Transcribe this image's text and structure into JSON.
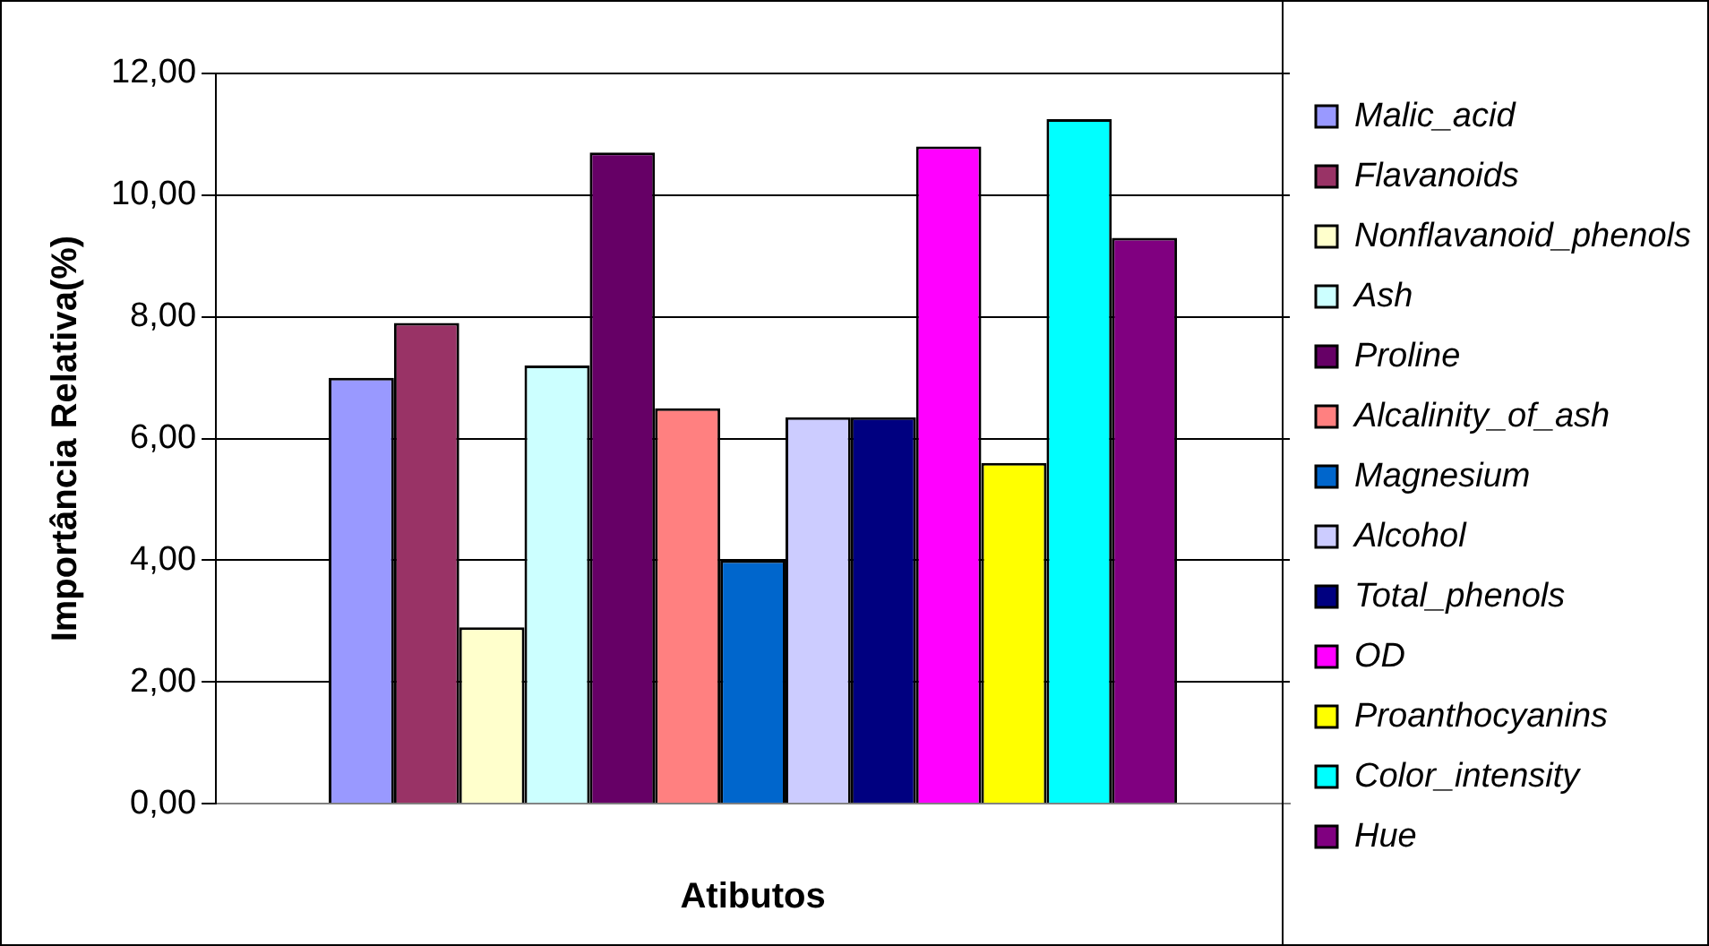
{
  "chart_data": {
    "type": "bar",
    "xlabel": "Atibutos",
    "ylabel": "Importância Relativa(%)",
    "categories": [
      null
    ],
    "series": [
      {
        "name": "Malic_acid",
        "color": "#9999ff",
        "values": [
          7.0
        ]
      },
      {
        "name": "Flavanoids",
        "color": "#993366",
        "values": [
          7.9
        ]
      },
      {
        "name": "Nonflavanoid_phenols",
        "color": "#ffffcc",
        "values": [
          2.9
        ]
      },
      {
        "name": "Ash",
        "color": "#ccffff",
        "values": [
          7.2
        ]
      },
      {
        "name": "Proline",
        "color": "#660066",
        "values": [
          10.7
        ]
      },
      {
        "name": "Alcalinity_of_ash",
        "color": "#ff8080",
        "values": [
          6.5
        ]
      },
      {
        "name": "Magnesium",
        "color": "#0066cc",
        "values": [
          4.0
        ]
      },
      {
        "name": "Alcohol",
        "color": "#ccccff",
        "values": [
          6.35
        ]
      },
      {
        "name": "Total_phenols",
        "color": "#000080",
        "values": [
          6.35
        ]
      },
      {
        "name": "OD",
        "color": "#ff00ff",
        "values": [
          10.8
        ]
      },
      {
        "name": "Proanthocyanins",
        "color": "#ffff00",
        "values": [
          5.6
        ]
      },
      {
        "name": "Color_intensity",
        "color": "#00ffff",
        "values": [
          11.25
        ]
      },
      {
        "name": "Hue",
        "color": "#800080",
        "values": [
          9.3
        ]
      }
    ],
    "ylim": [
      0,
      12
    ],
    "yticks": [
      {
        "value": 0,
        "label": "0,00"
      },
      {
        "value": 2,
        "label": "2,00"
      },
      {
        "value": 4,
        "label": "4,00"
      },
      {
        "value": 6,
        "label": "6,00"
      },
      {
        "value": 8,
        "label": "8,00"
      },
      {
        "value": 10,
        "label": "10,00"
      },
      {
        "value": 12,
        "label": "12,00"
      }
    ],
    "grid": "y",
    "legend": "right"
  }
}
